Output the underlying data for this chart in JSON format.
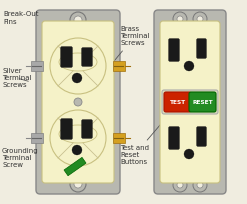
{
  "bg_color": "#f0ede0",
  "outlet_body_color": "#f5f2c8",
  "outlet_body_edge": "#c8c080",
  "plate_color": "#b8b8b0",
  "slot_color": "#1a1a1a",
  "screw_silver": "#a8a8a8",
  "screw_brass": "#d4a020",
  "screw_green": "#228B22",
  "button_red": "#cc2200",
  "button_green": "#228B22",
  "button_text_color": "#ffffff",
  "text_color": "#333333",
  "labels": {
    "break_out_fins": "Break-Out\nFins",
    "silver_screws": "Silver\nTerminal\nScrews",
    "grounding_screw": "Grounding\nTerminal\nScrew",
    "brass_screws": "Brass\nTerminal\nScrews",
    "test_reset": "Test and\nReset\nButtons",
    "test_btn": "TEST",
    "reset_btn": "RESET"
  }
}
